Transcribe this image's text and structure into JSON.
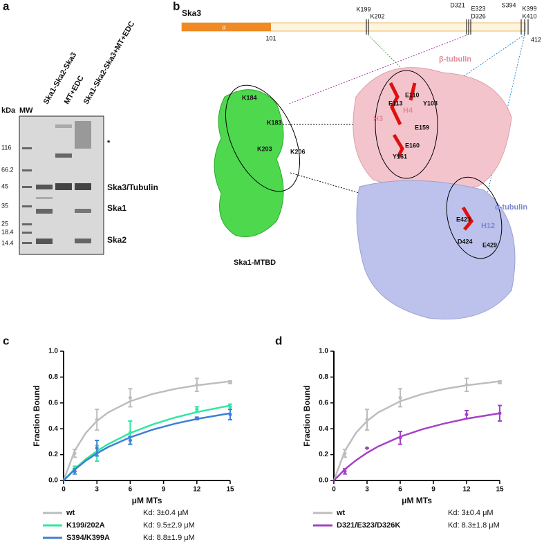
{
  "panel_labels": [
    "a",
    "b",
    "c",
    "d"
  ],
  "gel": {
    "axis_labels": [
      "kDa",
      "MW"
    ],
    "lanes": [
      "Ska1-Ska2-Ska3",
      "MT+EDC",
      "Ska1-Ska2-Ska3+MT+EDC"
    ],
    "markers": [
      "116",
      "66.2",
      "45",
      "35",
      "25",
      "18.4",
      "14.4"
    ],
    "bands": [
      "Ska3/Tubulin",
      "Ska1",
      "Ska2"
    ],
    "star": "*"
  },
  "structure": {
    "protein": "Ska3",
    "domain": "α",
    "positions": [
      "101",
      "412"
    ],
    "sites": [
      "K199",
      "K202",
      "D321",
      "E323",
      "D326",
      "S394",
      "K399",
      "K410"
    ],
    "molecules": [
      "β-tubulin",
      "α-tubulin",
      "Ska1-MTBD"
    ],
    "ska1_residues": [
      "K184",
      "K183",
      "K203",
      "K206"
    ],
    "beta_residues": [
      "E110",
      "E113",
      "Y108",
      "H4",
      "H3",
      "E159",
      "E160",
      "Y161"
    ],
    "alpha_residues": [
      "E423",
      "H12",
      "D424",
      "E429"
    ]
  },
  "chart_data": [
    {
      "type": "line",
      "ylabel": "Fraction Bound",
      "xlabel": "μM MTs",
      "xlim": [
        0,
        15
      ],
      "ylim": [
        0,
        1
      ],
      "xticks": [
        0,
        3,
        6,
        9,
        12,
        15
      ],
      "yticks": [
        {
          "value": 0,
          "label": "0.0"
        },
        0.2,
        0.4,
        0.6,
        0.8,
        {
          "value": 1,
          "label": "1.0"
        }
      ],
      "x": [
        1,
        3,
        6,
        12,
        15
      ],
      "fit_x": [
        0,
        1,
        2,
        3,
        4,
        6,
        8,
        10,
        12,
        15
      ],
      "series": [
        {
          "name": "wt",
          "color": "#bdbdbd",
          "kd_label": "Kd: 3±0.4 μM",
          "values": [
            0.21,
            0.47,
            0.64,
            0.74,
            0.76
          ],
          "errors": [
            0.03,
            0.08,
            0.07,
            0.05,
            0.01
          ],
          "fit_values": [
            0,
            0.23,
            0.368,
            0.46,
            0.526,
            0.613,
            0.669,
            0.708,
            0.736,
            0.767
          ]
        },
        {
          "name": "K199/202A",
          "color": "#2ee8a0",
          "kd_label": "Kd: 9.5±2.9 μM",
          "values": [
            0.09,
            0.21,
            0.37,
            0.55,
            0.57
          ],
          "errors": [
            0.02,
            0.06,
            0.09,
            0.02,
            0.02
          ],
          "fit_values": [
            0,
            0.09,
            0.165,
            0.227,
            0.281,
            0.367,
            0.433,
            0.486,
            0.529,
            0.58
          ]
        },
        {
          "name": "S394/K399A",
          "color": "#3d7fd4",
          "kd_label": "Kd: 8.8±1.9 μM",
          "values": [
            0.07,
            0.25,
            0.31,
            0.48,
            0.51
          ],
          "errors": [
            0.02,
            0.06,
            0.03,
            0.01,
            0.04
          ],
          "fit_values": [
            0,
            0.084,
            0.153,
            0.21,
            0.258,
            0.334,
            0.393,
            0.439,
            0.476,
            0.52
          ]
        }
      ]
    },
    {
      "type": "line",
      "ylabel": "Fraction Bound",
      "xlabel": "μM MTs",
      "xlim": [
        0,
        15
      ],
      "ylim": [
        0,
        1
      ],
      "xticks": [
        0,
        3,
        6,
        9,
        12,
        15
      ],
      "yticks": [
        {
          "value": 0,
          "label": "0.0"
        },
        0.2,
        0.4,
        0.6,
        0.8,
        {
          "value": 1,
          "label": "1.0"
        }
      ],
      "x": [
        1,
        3,
        6,
        12,
        15
      ],
      "fit_x": [
        0,
        1,
        2,
        3,
        4,
        6,
        8,
        10,
        12,
        15
      ],
      "series": [
        {
          "name": "wt",
          "color": "#bdbdbd",
          "kd_label": "Kd: 3±0.4 μM",
          "values": [
            0.21,
            0.47,
            0.64,
            0.74,
            0.76
          ],
          "errors": [
            0.03,
            0.08,
            0.07,
            0.05,
            0.01
          ],
          "fit_values": [
            0,
            0.23,
            0.368,
            0.46,
            0.526,
            0.613,
            0.669,
            0.708,
            0.736,
            0.767
          ]
        },
        {
          "name": "D321/E323/D326K",
          "color": "#a541c8",
          "kd_label": "Kd: 8.3±1.8 μM",
          "values": [
            0.07,
            0.25,
            0.33,
            0.51,
            0.52
          ],
          "errors": [
            0.02,
            0.0,
            0.05,
            0.03,
            0.06
          ],
          "fit_values": [
            0,
            0.087,
            0.156,
            0.214,
            0.263,
            0.339,
            0.396,
            0.441,
            0.478,
            0.52
          ]
        }
      ]
    }
  ]
}
